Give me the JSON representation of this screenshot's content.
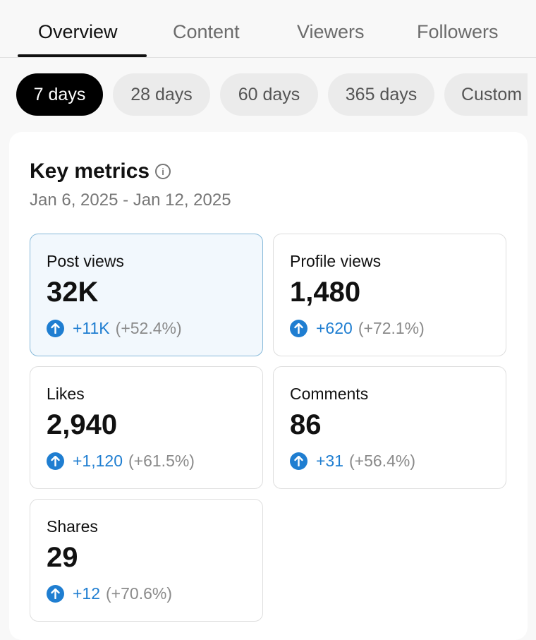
{
  "tabs": [
    {
      "label": "Overview"
    },
    {
      "label": "Content"
    },
    {
      "label": "Viewers"
    },
    {
      "label": "Followers"
    }
  ],
  "ranges": [
    {
      "label": "7 days"
    },
    {
      "label": "28 days"
    },
    {
      "label": "60 days"
    },
    {
      "label": "365 days"
    },
    {
      "label": "Custom"
    }
  ],
  "key_metrics": {
    "title": "Key metrics",
    "date_range": "Jan 6, 2025 - Jan 12, 2025",
    "cards": [
      {
        "label": "Post views",
        "value": "32K",
        "delta": "+11K",
        "pct": "(+52.4%)"
      },
      {
        "label": "Profile views",
        "value": "1,480",
        "delta": "+620",
        "pct": "(+72.1%)"
      },
      {
        "label": "Likes",
        "value": "2,940",
        "delta": "+1,120",
        "pct": "(+61.5%)"
      },
      {
        "label": "Comments",
        "value": "86",
        "delta": "+31",
        "pct": "(+56.4%)"
      },
      {
        "label": "Shares",
        "value": "29",
        "delta": "+12",
        "pct": "(+70.6%)"
      }
    ]
  },
  "colors": {
    "accent": "#1f7ed1",
    "selected_card_bg": "#f2f8fd",
    "active_chip_bg": "#000000"
  }
}
